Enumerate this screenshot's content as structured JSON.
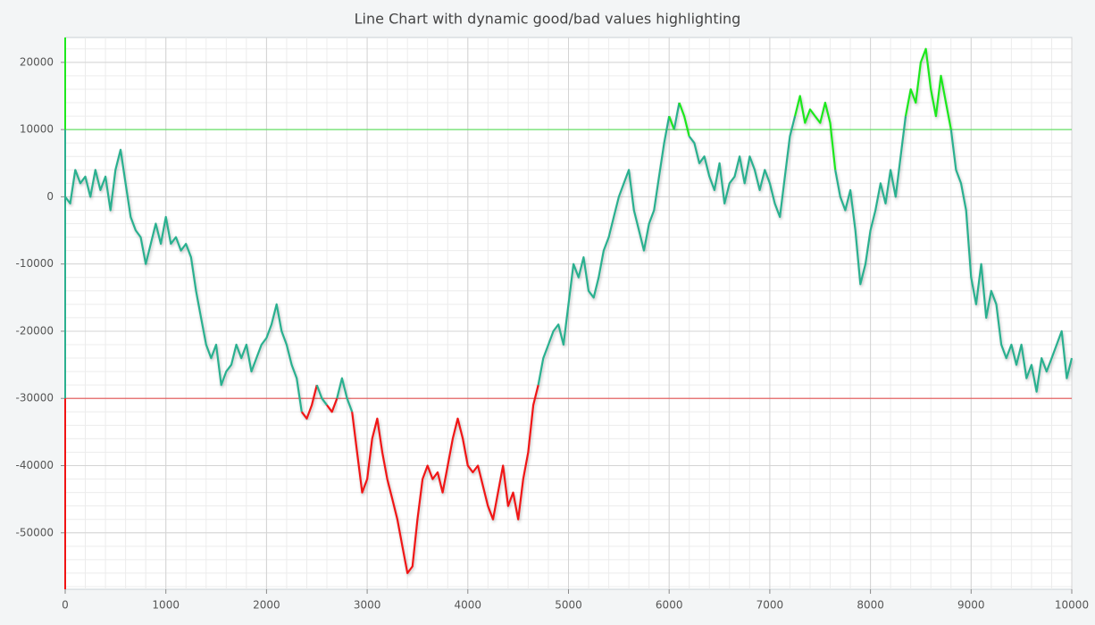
{
  "chart_data": {
    "type": "line",
    "title": "Line Chart with dynamic good/bad values highlighting",
    "x": [
      0,
      50,
      100,
      150,
      200,
      250,
      300,
      350,
      400,
      450,
      500,
      550,
      600,
      650,
      700,
      750,
      800,
      850,
      900,
      950,
      1000,
      1050,
      1100,
      1150,
      1200,
      1250,
      1300,
      1350,
      1400,
      1450,
      1500,
      1550,
      1600,
      1650,
      1700,
      1750,
      1800,
      1850,
      1900,
      1950,
      2000,
      2050,
      2100,
      2150,
      2200,
      2250,
      2300,
      2350,
      2400,
      2450,
      2500,
      2550,
      2600,
      2650,
      2700,
      2750,
      2800,
      2850,
      2900,
      2950,
      3000,
      3050,
      3100,
      3150,
      3200,
      3250,
      3300,
      3350,
      3400,
      3450,
      3500,
      3550,
      3600,
      3650,
      3700,
      3750,
      3800,
      3850,
      3900,
      3950,
      4000,
      4050,
      4100,
      4150,
      4200,
      4250,
      4300,
      4350,
      4400,
      4450,
      4500,
      4550,
      4600,
      4650,
      4700,
      4750,
      4800,
      4850,
      4900,
      4950,
      5000,
      5050,
      5100,
      5150,
      5200,
      5250,
      5300,
      5350,
      5400,
      5450,
      5500,
      5550,
      5600,
      5650,
      5700,
      5750,
      5800,
      5850,
      5900,
      5950,
      6000,
      6050,
      6100,
      6150,
      6200,
      6250,
      6300,
      6350,
      6400,
      6450,
      6500,
      6550,
      6600,
      6650,
      6700,
      6750,
      6800,
      6850,
      6900,
      6950,
      7000,
      7050,
      7100,
      7150,
      7200,
      7250,
      7300,
      7350,
      7400,
      7450,
      7500,
      7550,
      7600,
      7650,
      7700,
      7750,
      7800,
      7850,
      7900,
      7950,
      8000,
      8050,
      8100,
      8150,
      8200,
      8250,
      8300,
      8350,
      8400,
      8450,
      8500,
      8550,
      8600,
      8650,
      8700,
      8750,
      8800,
      8850,
      8900,
      8950,
      9000,
      9050,
      9100,
      9150,
      9200,
      9250,
      9300,
      9350,
      9400,
      9450,
      9500,
      9550,
      9600,
      9650,
      9700,
      9750,
      9800,
      9850,
      9900,
      9950,
      10000
    ],
    "values": [
      0,
      -1000,
      4000,
      2000,
      3000,
      0,
      4000,
      1000,
      3000,
      -2000,
      4000,
      7000,
      2000,
      -3000,
      -5000,
      -6000,
      -10000,
      -7000,
      -4000,
      -7000,
      -3000,
      -7000,
      -6000,
      -8000,
      -7000,
      -9000,
      -14000,
      -18000,
      -22000,
      -24000,
      -22000,
      -28000,
      -26000,
      -25000,
      -22000,
      -24000,
      -22000,
      -26000,
      -24000,
      -22000,
      -21000,
      -19000,
      -16000,
      -20000,
      -22000,
      -25000,
      -27000,
      -32000,
      -33000,
      -31000,
      -28000,
      -30000,
      -31000,
      -32000,
      -30000,
      -27000,
      -30000,
      -32000,
      -38000,
      -44000,
      -42000,
      -36000,
      -33000,
      -38000,
      -42000,
      -45000,
      -48000,
      -52000,
      -56000,
      -55000,
      -48000,
      -42000,
      -40000,
      -42000,
      -41000,
      -44000,
      -40000,
      -36000,
      -33000,
      -36000,
      -40000,
      -41000,
      -40000,
      -43000,
      -46000,
      -48000,
      -44000,
      -40000,
      -46000,
      -44000,
      -48000,
      -42000,
      -38000,
      -31000,
      -28000,
      -24000,
      -22000,
      -20000,
      -19000,
      -22000,
      -16000,
      -10000,
      -12000,
      -9000,
      -14000,
      -15000,
      -12000,
      -8000,
      -6000,
      -3000,
      0,
      2000,
      4000,
      -2000,
      -5000,
      -8000,
      -4000,
      -2000,
      3000,
      8000,
      12000,
      10000,
      14000,
      12000,
      9000,
      8000,
      5000,
      6000,
      3000,
      1000,
      5000,
      -1000,
      2000,
      3000,
      6000,
      2000,
      6000,
      4000,
      1000,
      4000,
      2000,
      -1000,
      -3000,
      3000,
      9000,
      12000,
      15000,
      11000,
      13000,
      12000,
      11000,
      14000,
      11000,
      4000,
      0,
      -2000,
      1000,
      -5000,
      -13000,
      -10000,
      -5000,
      -2000,
      2000,
      -1000,
      4000,
      0,
      6000,
      12000,
      16000,
      14000,
      20000,
      22000,
      16000,
      12000,
      18000,
      14000,
      10000,
      4000,
      2000,
      -2000,
      -12000,
      -16000,
      -10000,
      -18000,
      -14000,
      -16000,
      -22000,
      -24000,
      -22000,
      -25000,
      -22000,
      -27000,
      -25000,
      -29000,
      -24000,
      -26000,
      -24000,
      -22000,
      -20000,
      -27000,
      -24000
    ],
    "xlim": [
      0,
      10000
    ],
    "xticks": [
      0,
      1000,
      2000,
      3000,
      4000,
      5000,
      6000,
      7000,
      8000,
      9000,
      10000
    ],
    "ylim": [
      -58400,
      23700
    ],
    "yticks": [
      -50000,
      -40000,
      -30000,
      -20000,
      -10000,
      0,
      10000,
      20000
    ],
    "grid": true,
    "minor_grid": 5,
    "thresholds": {
      "good": 10000,
      "bad": -30000
    },
    "colors": {
      "normal": "#2bb08f",
      "good": "#1de81d",
      "bad": "#f01414"
    }
  }
}
